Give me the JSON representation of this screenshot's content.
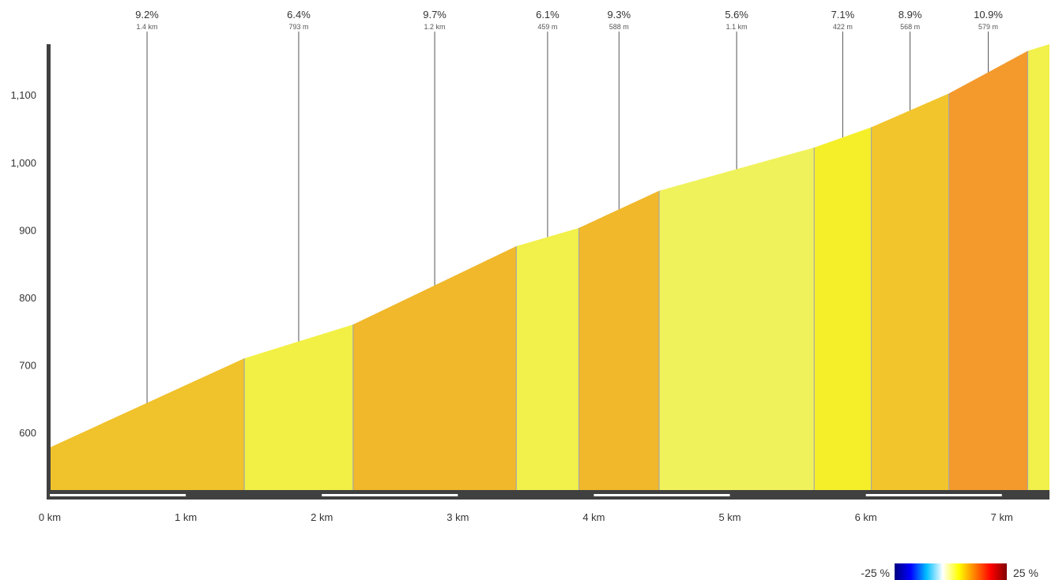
{
  "chart_data": {
    "type": "area",
    "title": "",
    "xlabel": "",
    "ylabel": "",
    "xlim": [
      0,
      7.35
    ],
    "ylim": [
      515,
      1175
    ],
    "x_ticks": [
      {
        "value": 0,
        "label": "0 km"
      },
      {
        "value": 1,
        "label": "1 km"
      },
      {
        "value": 2,
        "label": "2 km"
      },
      {
        "value": 3,
        "label": "3 km"
      },
      {
        "value": 4,
        "label": "4 km"
      },
      {
        "value": 5,
        "label": "5 km"
      },
      {
        "value": 6,
        "label": "6 km"
      },
      {
        "value": 7,
        "label": "7 km"
      }
    ],
    "y_ticks": [
      {
        "value": 600,
        "label": "600"
      },
      {
        "value": 700,
        "label": "700"
      },
      {
        "value": 800,
        "label": "800"
      },
      {
        "value": 900,
        "label": "900"
      },
      {
        "value": 1000,
        "label": "1,000"
      },
      {
        "value": 1100,
        "label": "1,100"
      }
    ],
    "segments": [
      {
        "start_km": 0.0,
        "end_km": 1.43,
        "start_elev": 578,
        "end_elev": 710,
        "grade": "9.2%",
        "length": "1.4 km",
        "color": "#f0c22b"
      },
      {
        "start_km": 1.43,
        "end_km": 2.23,
        "start_elev": 710,
        "end_elev": 760,
        "grade": "6.4%",
        "length": "793 m",
        "color": "#f2f045"
      },
      {
        "start_km": 2.23,
        "end_km": 3.43,
        "start_elev": 760,
        "end_elev": 876,
        "grade": "9.7%",
        "length": "1.2 km",
        "color": "#f0b82a"
      },
      {
        "start_km": 3.43,
        "end_km": 3.89,
        "start_elev": 876,
        "end_elev": 903,
        "grade": "6.1%",
        "length": "459 m",
        "color": "#f2f04a"
      },
      {
        "start_km": 3.89,
        "end_km": 4.48,
        "start_elev": 903,
        "end_elev": 958,
        "grade": "9.3%",
        "length": "588 m",
        "color": "#f0b82a"
      },
      {
        "start_km": 4.48,
        "end_km": 5.62,
        "start_elev": 958,
        "end_elev": 1022,
        "grade": "5.6%",
        "length": "1.1 km",
        "color": "#f0f25c"
      },
      {
        "start_km": 5.62,
        "end_km": 6.04,
        "start_elev": 1022,
        "end_elev": 1052,
        "grade": "7.1%",
        "length": "422 m",
        "color": "#f5ef2a"
      },
      {
        "start_km": 6.04,
        "end_km": 6.61,
        "start_elev": 1052,
        "end_elev": 1102,
        "grade": "8.9%",
        "length": "568 m",
        "color": "#f2c52c"
      },
      {
        "start_km": 6.61,
        "end_km": 7.19,
        "start_elev": 1102,
        "end_elev": 1165,
        "grade": "10.9%",
        "length": "579 m",
        "color": "#f4992c"
      },
      {
        "start_km": 7.19,
        "end_km": 7.35,
        "start_elev": 1165,
        "end_elev": 1175,
        "grade": "",
        "length": "",
        "color": "#f2f04a"
      }
    ],
    "legend": {
      "min_label": "-25 %",
      "max_label": "25 %",
      "gradient": [
        "#000080",
        "#0000ff",
        "#00bfff",
        "#ffffff",
        "#ffff00",
        "#ff8000",
        "#ff0000",
        "#800000"
      ]
    },
    "grid": false
  }
}
